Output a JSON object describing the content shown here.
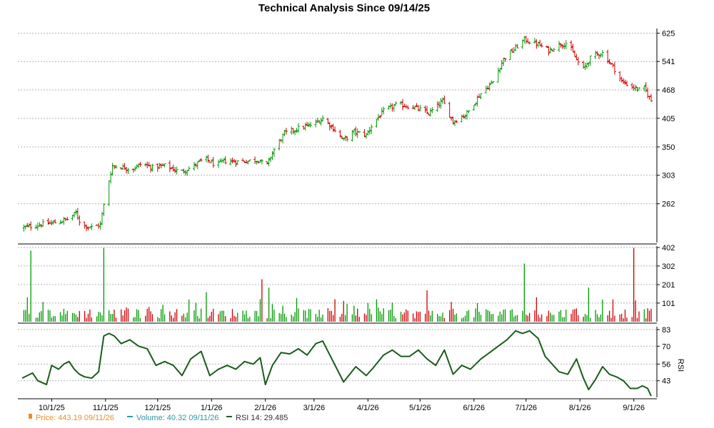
{
  "colors": {
    "up": "#009900",
    "down": "#cc0000",
    "rsi": "#1a5c1a",
    "price_legend": "#e8902a",
    "volume_legend": "#2a9aa8",
    "grid": "#b4b4b4",
    "frame": "#000000"
  },
  "chart_data": [
    {
      "type": "ohlc",
      "title": "Technical Analysis Since 09/14/25",
      "x_tick_labels": [
        "10/1/25",
        "11/1/25",
        "12/1/25",
        "1/1/26",
        "2/1/26",
        "3/1/26",
        "4/1/26",
        "5/1/26",
        "6/1/26",
        "7/1/26",
        "8/1/26",
        "9/1/26"
      ],
      "y_tick_labels": [
        "625",
        "541",
        "468",
        "405",
        "350",
        "303",
        "262"
      ],
      "ylim": [
        215,
        640
      ],
      "scale": "log",
      "grid": true,
      "axis_side": "right",
      "close_anchors": [
        [
          "2025-09-15",
          232
        ],
        [
          "2025-09-25",
          236
        ],
        [
          "2025-10-03",
          238
        ],
        [
          "2025-10-10",
          242
        ],
        [
          "2025-10-15",
          250
        ],
        [
          "2025-10-18",
          235
        ],
        [
          "2025-10-25",
          232
        ],
        [
          "2025-10-29",
          236
        ],
        [
          "2025-11-01",
          272
        ],
        [
          "2025-11-05",
          318
        ],
        [
          "2025-11-12",
          315
        ],
        [
          "2025-11-16",
          312
        ],
        [
          "2025-11-22",
          322
        ],
        [
          "2025-11-28",
          315
        ],
        [
          "2025-12-05",
          318
        ],
        [
          "2025-12-14",
          308
        ],
        [
          "2025-12-21",
          316
        ],
        [
          "2025-12-28",
          330
        ],
        [
          "2026-01-04",
          318
        ],
        [
          "2026-01-08",
          326
        ],
        [
          "2026-01-15",
          325
        ],
        [
          "2026-01-22",
          326
        ],
        [
          "2026-01-29",
          328
        ],
        [
          "2026-02-01",
          312
        ],
        [
          "2026-02-05",
          340
        ],
        [
          "2026-02-12",
          375
        ],
        [
          "2026-02-20",
          385
        ],
        [
          "2026-02-28",
          392
        ],
        [
          "2026-03-06",
          405
        ],
        [
          "2026-03-12",
          385
        ],
        [
          "2026-03-18",
          362
        ],
        [
          "2026-03-24",
          378
        ],
        [
          "2026-03-31",
          372
        ],
        [
          "2026-04-04",
          395
        ],
        [
          "2026-04-10",
          420
        ],
        [
          "2026-04-18",
          435
        ],
        [
          "2026-04-28",
          428
        ],
        [
          "2026-05-06",
          415
        ],
        [
          "2026-05-14",
          442
        ],
        [
          "2026-05-20",
          398
        ],
        [
          "2026-05-28",
          415
        ],
        [
          "2026-06-05",
          460
        ],
        [
          "2026-06-12",
          488
        ],
        [
          "2026-06-18",
          548
        ],
        [
          "2026-06-24",
          575
        ],
        [
          "2026-06-30",
          605
        ],
        [
          "2026-07-08",
          590
        ],
        [
          "2026-07-14",
          572
        ],
        [
          "2026-07-20",
          590
        ],
        [
          "2026-07-25",
          595
        ],
        [
          "2026-07-30",
          545
        ],
        [
          "2026-08-03",
          520
        ],
        [
          "2026-08-08",
          558
        ],
        [
          "2026-08-14",
          565
        ],
        [
          "2026-08-21",
          520
        ],
        [
          "2026-08-25",
          488
        ],
        [
          "2026-08-30",
          478
        ],
        [
          "2026-09-04",
          468
        ],
        [
          "2026-09-07",
          472
        ],
        [
          "2026-09-11",
          443
        ]
      ]
    },
    {
      "type": "bar",
      "name": "Volume",
      "y_tick_labels": [
        "402",
        "302",
        "201",
        "101"
      ],
      "ylim": [
        0,
        402
      ],
      "grid": true,
      "spikes": [
        [
          "2025-09-19",
          385
        ],
        [
          "2025-10-31",
          400
        ],
        [
          "2025-11-01",
          175
        ],
        [
          "2025-12-29",
          160
        ],
        [
          "2026-01-30",
          230
        ],
        [
          "2026-02-03",
          185
        ],
        [
          "2026-05-05",
          170
        ],
        [
          "2026-06-30",
          315
        ],
        [
          "2026-08-06",
          185
        ],
        [
          "2026-09-01",
          400
        ],
        [
          "2026-09-02",
          115
        ]
      ]
    },
    {
      "type": "line",
      "ylabel": "RSI",
      "y_tick_labels": [
        "83",
        "70",
        "56",
        "43"
      ],
      "ylim": [
        30,
        83
      ],
      "grid": true,
      "series": [
        {
          "values": [
            [
              "2025-09-14",
              45
            ],
            [
              "2025-09-17",
              47
            ],
            [
              "2025-09-20",
              49
            ],
            [
              "2025-09-23",
              43
            ],
            [
              "2025-09-28",
              40
            ],
            [
              "2025-10-01",
              55
            ],
            [
              "2025-10-05",
              52
            ],
            [
              "2025-10-08",
              56
            ],
            [
              "2025-10-11",
              58
            ],
            [
              "2025-10-14",
              52
            ],
            [
              "2025-10-17",
              48
            ],
            [
              "2025-10-20",
              46
            ],
            [
              "2025-10-24",
              45
            ],
            [
              "2025-10-28",
              50
            ],
            [
              "2025-10-31",
              78
            ],
            [
              "2025-11-03",
              80
            ],
            [
              "2025-11-06",
              78
            ],
            [
              "2025-11-10",
              72
            ],
            [
              "2025-11-15",
              75
            ],
            [
              "2025-11-20",
              70
            ],
            [
              "2025-11-25",
              68
            ],
            [
              "2025-11-30",
              55
            ],
            [
              "2025-12-05",
              58
            ],
            [
              "2025-12-10",
              55
            ],
            [
              "2025-12-15",
              47
            ],
            [
              "2025-12-20",
              60
            ],
            [
              "2025-12-26",
              66
            ],
            [
              "2025-12-31",
              47
            ],
            [
              "2026-01-05",
              52
            ],
            [
              "2026-01-10",
              55
            ],
            [
              "2026-01-15",
              52
            ],
            [
              "2026-01-20",
              58
            ],
            [
              "2026-01-25",
              56
            ],
            [
              "2026-01-29",
              61
            ],
            [
              "2026-02-01",
              40
            ],
            [
              "2026-02-05",
              55
            ],
            [
              "2026-02-10",
              65
            ],
            [
              "2026-02-15",
              64
            ],
            [
              "2026-02-20",
              68
            ],
            [
              "2026-02-25",
              63
            ],
            [
              "2026-03-02",
              72
            ],
            [
              "2026-03-06",
              74
            ],
            [
              "2026-03-12",
              58
            ],
            [
              "2026-03-18",
              42
            ],
            [
              "2026-03-25",
              54
            ],
            [
              "2026-03-31",
              47
            ],
            [
              "2026-04-04",
              53
            ],
            [
              "2026-04-10",
              63
            ],
            [
              "2026-04-15",
              67
            ],
            [
              "2026-04-20",
              62
            ],
            [
              "2026-04-25",
              62
            ],
            [
              "2026-04-30",
              67
            ],
            [
              "2026-05-05",
              60
            ],
            [
              "2026-05-10",
              55
            ],
            [
              "2026-05-15",
              67
            ],
            [
              "2026-05-20",
              48
            ],
            [
              "2026-05-25",
              55
            ],
            [
              "2026-05-30",
              52
            ],
            [
              "2026-06-05",
              60
            ],
            [
              "2026-06-10",
              65
            ],
            [
              "2026-06-15",
              70
            ],
            [
              "2026-06-20",
              75
            ],
            [
              "2026-06-25",
              82
            ],
            [
              "2026-06-29",
              80
            ],
            [
              "2026-07-03",
              82
            ],
            [
              "2026-07-08",
              76
            ],
            [
              "2026-07-12",
              62
            ],
            [
              "2026-07-16",
              56
            ],
            [
              "2026-07-20",
              50
            ],
            [
              "2026-07-25",
              48
            ],
            [
              "2026-07-30",
              60
            ],
            [
              "2026-08-03",
              45
            ],
            [
              "2026-08-06",
              36
            ],
            [
              "2026-08-10",
              44
            ],
            [
              "2026-08-14",
              54
            ],
            [
              "2026-08-18",
              48
            ],
            [
              "2026-08-22",
              46
            ],
            [
              "2026-08-26",
              43
            ],
            [
              "2026-08-30",
              37
            ],
            [
              "2026-09-03",
              37
            ],
            [
              "2026-09-06",
              39
            ],
            [
              "2026-09-09",
              37
            ],
            [
              "2026-09-11",
              31
            ]
          ]
        }
      ]
    }
  ],
  "legend": {
    "price": "Price: 443.19  09/11/26",
    "volume": "Volume: 40.32  09/11/26",
    "rsi": "RSI 14: 29.485"
  }
}
